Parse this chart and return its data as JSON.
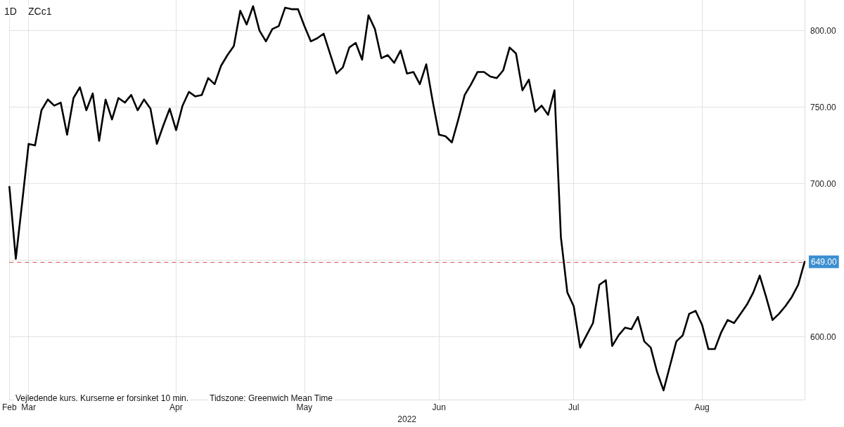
{
  "chart_data": {
    "type": "line",
    "xlabel": "2022",
    "categories": [
      "Feb",
      null,
      null,
      "Mar",
      null,
      null,
      null,
      null,
      null,
      null,
      null,
      null,
      null,
      null,
      null,
      null,
      null,
      null,
      null,
      null,
      null,
      null,
      null,
      null,
      null,
      null,
      "Apr",
      null,
      null,
      null,
      null,
      null,
      null,
      null,
      null,
      null,
      null,
      null,
      null,
      null,
      null,
      null,
      null,
      null,
      null,
      null,
      "May",
      null,
      null,
      null,
      null,
      null,
      null,
      null,
      null,
      null,
      null,
      null,
      null,
      null,
      null,
      null,
      null,
      null,
      null,
      null,
      null,
      "Jun",
      null,
      null,
      null,
      null,
      null,
      null,
      null,
      null,
      null,
      null,
      null,
      null,
      null,
      null,
      null,
      null,
      null,
      null,
      null,
      null,
      "Jul",
      null,
      null,
      null,
      null,
      null,
      null,
      null,
      null,
      null,
      null,
      null,
      null,
      null,
      null,
      null,
      null,
      null,
      null,
      null,
      "Aug",
      null,
      null,
      null,
      null,
      null,
      null,
      null,
      null,
      null,
      null,
      null,
      null,
      null,
      null,
      null,
      null
    ],
    "series": [
      {
        "color": "#000000",
        "values": [
          698,
          651,
          688,
          726,
          725,
          748,
          755,
          751,
          753,
          732,
          756,
          763,
          748,
          759,
          728,
          755,
          742,
          756,
          753,
          758,
          748,
          755,
          749,
          726,
          738,
          749,
          735,
          751,
          760,
          757,
          758,
          769,
          765,
          777,
          784,
          790,
          813,
          804,
          816,
          800,
          793,
          801,
          803,
          815,
          814,
          814,
          803,
          793,
          795,
          798,
          785,
          772,
          776,
          789,
          792,
          781,
          810,
          801,
          782,
          784,
          779,
          787,
          772,
          773,
          765,
          778,
          754,
          732,
          731,
          727,
          742,
          758,
          765,
          773,
          773,
          770,
          769,
          774,
          789,
          785,
          761,
          768,
          747,
          751,
          745,
          761,
          665,
          629,
          620,
          593,
          601,
          609,
          634,
          637,
          594,
          601,
          606,
          605,
          613,
          597,
          593,
          577,
          565,
          581,
          597,
          601,
          615,
          617,
          608,
          592,
          592,
          603,
          611,
          609,
          615,
          621,
          629,
          640,
          626,
          611,
          615,
          620,
          626,
          634,
          649
        ]
      }
    ],
    "ylim": [
      559,
      820
    ],
    "yticks": [
      {
        "value": 600,
        "label": "600.00"
      },
      {
        "value": 650,
        "label": null
      },
      {
        "value": 700,
        "label": "700.00"
      },
      {
        "value": 750,
        "label": "750.00"
      },
      {
        "value": 800,
        "label": "800.00"
      }
    ],
    "grid": true,
    "marker": "none",
    "line_style": "solid",
    "ref_lines": [
      {
        "axis": "y",
        "value": 649,
        "label": "649.00",
        "color": "#d9534f",
        "line_style": "dashed"
      }
    ],
    "annotations": [
      "1D",
      "ZCc1",
      "Vejledende kurs. Kurserne er forsinket 10 min.",
      "Tidszone: Greenwich Mean Time"
    ]
  }
}
